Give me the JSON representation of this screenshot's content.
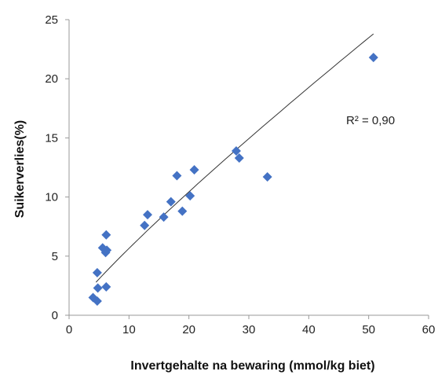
{
  "chart_data": {
    "type": "scatter",
    "title": "",
    "xlabel": "Invertgehalte na bewaring (mmol/kg biet)",
    "ylabel": "Suikerverlies(%)",
    "xlim": [
      0,
      60
    ],
    "ylim": [
      0,
      25
    ],
    "xticks": [
      0,
      10,
      20,
      30,
      40,
      50,
      60
    ],
    "yticks": [
      0,
      5,
      10,
      15,
      20,
      25
    ],
    "grid": false,
    "legend": "none",
    "marker": "diamond",
    "marker_color": "#4472C4",
    "trendline": {
      "type": "power",
      "color": "#333333",
      "x_range": [
        4.5,
        50.8
      ],
      "annotation": "R² = 0,90"
    },
    "series": [
      {
        "x": [
          50.8,
          27.9,
          28.4,
          33.1,
          20.9,
          18.0,
          20.2,
          17.0,
          13.1,
          12.6,
          15.8,
          18.9,
          6.2,
          5.6,
          6.1,
          6.3,
          4.7,
          4.8,
          6.2,
          4.0,
          4.7
        ],
        "y": [
          21.8,
          13.9,
          13.3,
          11.7,
          12.3,
          11.8,
          10.1,
          9.6,
          8.5,
          7.6,
          8.3,
          8.8,
          6.8,
          5.7,
          5.3,
          5.5,
          3.6,
          2.3,
          2.4,
          1.5,
          1.2
        ]
      }
    ]
  }
}
